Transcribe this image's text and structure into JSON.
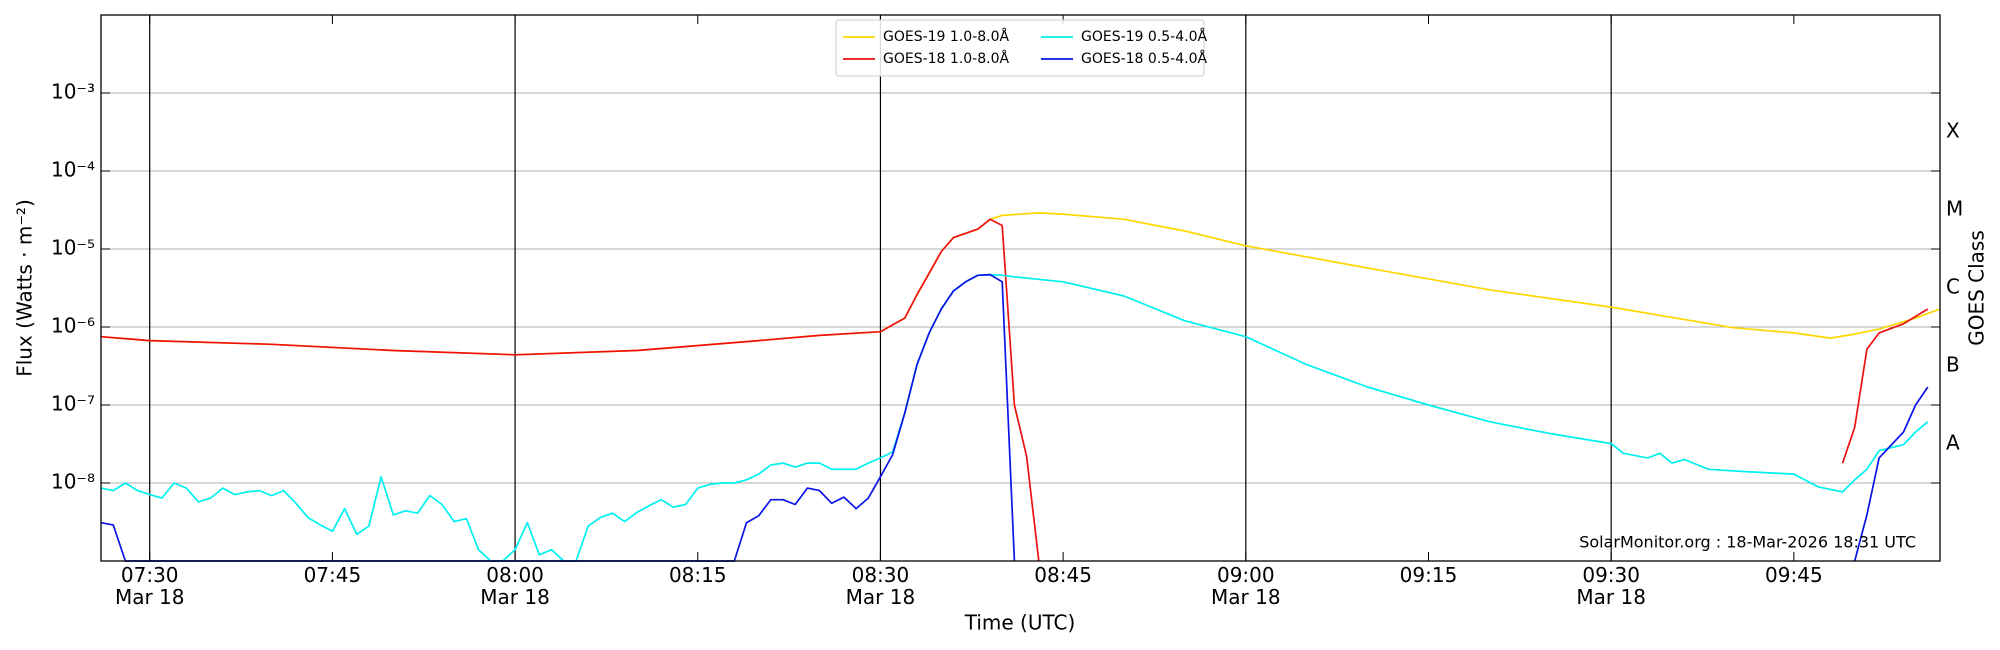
{
  "chart_data": {
    "type": "line",
    "ylabel": "Flux (Watts · m⁻²)",
    "xlabel": "Time (UTC)",
    "y2label": "GOES Class",
    "annotation": "SolarMonitor.org : 18-Mar-2026 18:31 UTC",
    "yscale": "log",
    "grid": true,
    "legend": "upper center",
    "xlim": [
      "07:26",
      "09:57"
    ],
    "ylim": [
      1e-09,
      0.01
    ],
    "y2lim": [
      1e-09,
      0.01
    ],
    "xticks": [
      {
        "value": "07:30",
        "label": [
          "07:30",
          "Mar 18"
        ]
      },
      {
        "value": "07:45",
        "label": [
          "07:45"
        ]
      },
      {
        "value": "08:00",
        "label": [
          "08:00",
          "Mar 18"
        ]
      },
      {
        "value": "08:15",
        "label": [
          "08:15"
        ]
      },
      {
        "value": "08:30",
        "label": [
          "08:30",
          "Mar 18"
        ]
      },
      {
        "value": "08:45",
        "label": [
          "08:45"
        ]
      },
      {
        "value": "09:00",
        "label": [
          "09:00",
          "Mar 18"
        ]
      },
      {
        "value": "09:15",
        "label": [
          "09:15"
        ]
      },
      {
        "value": "09:30",
        "label": [
          "09:30",
          "Mar 18"
        ]
      },
      {
        "value": "09:45",
        "label": [
          "09:45"
        ]
      }
    ],
    "yticks": [
      {
        "value": 1e-08,
        "label": "10⁻⁸"
      },
      {
        "value": 1e-07,
        "label": "10⁻⁷"
      },
      {
        "value": 1e-06,
        "label": "10⁻⁶"
      },
      {
        "value": 1e-05,
        "label": "10⁻⁵"
      },
      {
        "value": 0.0001,
        "label": "10⁻⁴"
      },
      {
        "value": 0.001,
        "label": "10⁻³"
      }
    ],
    "y2ticks": [
      {
        "value": 3.16e-08,
        "label": "A"
      },
      {
        "value": 3.16e-07,
        "label": "B"
      },
      {
        "value": 3.16e-06,
        "label": "C"
      },
      {
        "value": 3.16e-05,
        "label": "M"
      },
      {
        "value": 0.000316,
        "label": "X"
      }
    ],
    "series": [
      {
        "name": "GOES-19 1.0-8.0Å",
        "color": "#ffd700",
        "x": [
          "07:26",
          "07:30",
          "07:40",
          "07:50",
          "08:00",
          "08:10",
          "08:20",
          "08:25",
          "08:30",
          "08:32",
          "08:33",
          "08:34",
          "08:35",
          "08:36",
          "08:38",
          "08:39",
          "08:40",
          "08:43",
          "08:45",
          "08:50",
          "08:55",
          "09:00",
          "09:10",
          "09:20",
          "09:30",
          "09:40",
          "09:45",
          "09:48",
          "09:50",
          "09:52",
          "09:55",
          "09:57"
        ],
        "values": [
          7.5e-07,
          6.7e-07,
          6e-07,
          5e-07,
          4.4e-07,
          5e-07,
          6.7e-07,
          7.8e-07,
          8.7e-07,
          1.3e-06,
          2.6e-06,
          4.9e-06,
          9.3e-06,
          1.4e-05,
          1.8e-05,
          2.4e-05,
          2.7e-05,
          2.9e-05,
          2.8e-05,
          2.4e-05,
          1.7e-05,
          1.1e-05,
          5.7e-06,
          3e-06,
          1.8e-06,
          9.8e-07,
          8.4e-07,
          7.2e-07,
          8.1e-07,
          9.4e-07,
          1.3e-06,
          1.7e-06
        ]
      },
      {
        "name": "GOES-18 1.0-8.0Å",
        "color": "#ee1111",
        "x": [
          "07:26",
          "07:30",
          "07:40",
          "07:50",
          "08:00",
          "08:10",
          "08:20",
          "08:25",
          "08:30",
          "08:32",
          "08:33",
          "08:34",
          "08:35",
          "08:36",
          "08:38",
          "08:39",
          "08:40",
          "08:41",
          "08:42",
          "08:43",
          "09:30",
          "09:49",
          "09:50",
          "09:51",
          "09:52",
          "09:54",
          "09:56"
        ],
        "values": [
          7.5e-07,
          6.7e-07,
          6e-07,
          5e-07,
          4.4e-07,
          5e-07,
          6.7e-07,
          7.8e-07,
          8.7e-07,
          1.3e-06,
          2.6e-06,
          4.9e-06,
          9.3e-06,
          1.4e-05,
          1.8e-05,
          2.4e-05,
          2e-05,
          1e-07,
          2.2e-08,
          1e-09,
          null,
          1.8e-08,
          5.2e-08,
          5.2e-07,
          8.4e-07,
          1.1e-06,
          1.7e-06
        ]
      },
      {
        "name": "GOES-19 0.5-4.0Å",
        "color": "#00f0f0",
        "x": [
          "07:26",
          "07:27",
          "07:28",
          "07:29",
          "07:30",
          "07:31",
          "07:32",
          "07:33",
          "07:34",
          "07:35",
          "07:36",
          "07:37",
          "07:38",
          "07:39",
          "07:40",
          "07:41",
          "07:42",
          "07:43",
          "07:44",
          "07:45",
          "07:46",
          "07:47",
          "07:48",
          "07:49",
          "07:50",
          "07:51",
          "07:52",
          "07:53",
          "07:54",
          "07:55",
          "07:56",
          "07:57",
          "07:58",
          "07:59",
          "08:00",
          "08:01",
          "08:02",
          "08:03",
          "08:04",
          "08:05",
          "08:06",
          "08:07",
          "08:08",
          "08:09",
          "08:10",
          "08:11",
          "08:12",
          "08:13",
          "08:14",
          "08:15",
          "08:16",
          "08:17",
          "08:18",
          "08:19",
          "08:20",
          "08:21",
          "08:22",
          "08:23",
          "08:24",
          "08:25",
          "08:26",
          "08:27",
          "08:28",
          "08:29",
          "08:30",
          "08:31",
          "08:32",
          "08:33",
          "08:34",
          "08:35",
          "08:36",
          "08:37",
          "08:38",
          "08:39",
          "08:40",
          "08:41",
          "08:45",
          "08:50",
          "08:55",
          "09:00",
          "09:05",
          "09:10",
          "09:15",
          "09:20",
          "09:25",
          "09:30",
          "09:31",
          "09:33",
          "09:34",
          "09:35",
          "09:36",
          "09:38",
          "09:41",
          "09:45",
          "09:47",
          "09:49",
          "09:50",
          "09:51",
          "09:52",
          "09:54",
          "09:55",
          "09:56"
        ],
        "values": [
          8.6e-09,
          8e-09,
          1e-08,
          8e-09,
          7.1e-09,
          6.4e-09,
          1e-08,
          8.6e-09,
          5.7e-09,
          6.4e-09,
          8.6e-09,
          7.1e-09,
          7.7e-09,
          8e-09,
          6.9e-09,
          8e-09,
          5.5e-09,
          3.6e-09,
          2.9e-09,
          2.4e-09,
          4.7e-09,
          2.2e-09,
          2.8e-09,
          1.2e-08,
          3.9e-09,
          4.4e-09,
          4.1e-09,
          6.9e-09,
          5.3e-09,
          3.2e-09,
          3.5e-09,
          1.4e-09,
          1e-09,
          1e-09,
          1.4e-09,
          3.1e-09,
          1.2e-09,
          1.4e-09,
          1e-09,
          1e-09,
          2.8e-09,
          3.6e-09,
          4.1e-09,
          3.2e-09,
          4.2e-09,
          5.1e-09,
          6.1e-09,
          4.9e-09,
          5.3e-09,
          8.6e-09,
          9.6e-09,
          1e-08,
          1e-08,
          1.1e-08,
          1.3e-08,
          1.7e-08,
          1.8e-08,
          1.6e-08,
          1.8e-08,
          1.8e-08,
          1.5e-08,
          1.5e-08,
          1.5e-08,
          1.8e-08,
          2.1e-08,
          2.5e-08,
          7.9e-08,
          3.3e-07,
          8.4e-07,
          1.7e-06,
          2.9e-06,
          3.8e-06,
          4.6e-06,
          4.7e-06,
          4.6e-06,
          4.4e-06,
          3.8e-06,
          2.5e-06,
          1.2e-06,
          7.5e-07,
          3.3e-07,
          1.7e-07,
          1e-07,
          6.1e-08,
          4.3e-08,
          3.2e-08,
          2.4e-08,
          2.1e-08,
          2.4e-08,
          1.8e-08,
          2e-08,
          1.5e-08,
          1.4e-08,
          1.3e-08,
          8.9e-09,
          7.7e-09,
          1.1e-08,
          1.5e-08,
          2.6e-08,
          3.1e-08,
          4.5e-08,
          6.1e-08
        ]
      },
      {
        "name": "GOES-18 0.5-4.0Å",
        "color": "#0a14e6",
        "x": [
          "07:26",
          "07:27",
          "07:28",
          "08:18",
          "08:19",
          "08:20",
          "08:21",
          "08:22",
          "08:23",
          "08:24",
          "08:25",
          "08:26",
          "08:27",
          "08:28",
          "08:29",
          "08:30",
          "08:31",
          "08:32",
          "08:33",
          "08:34",
          "08:35",
          "08:36",
          "08:37",
          "08:38",
          "08:39",
          "08:40",
          "08:41",
          "09:30",
          "09:50",
          "09:51",
          "09:52",
          "09:54",
          "09:55",
          "09:56"
        ],
        "values": [
          3.1e-09,
          2.9e-09,
          1e-09,
          1e-09,
          3.1e-09,
          3.8e-09,
          6.1e-09,
          6.1e-09,
          5.3e-09,
          8.6e-09,
          8e-09,
          5.5e-09,
          6.6e-09,
          4.7e-09,
          6.4e-09,
          1.2e-08,
          2.3e-08,
          7.9e-08,
          3.3e-07,
          8.4e-07,
          1.7e-06,
          2.9e-06,
          3.8e-06,
          4.6e-06,
          4.7e-06,
          3.8e-06,
          1e-09,
          null,
          1e-09,
          3.9e-09,
          2.1e-08,
          4.5e-08,
          1e-07,
          1.7e-07
        ]
      }
    ]
  }
}
